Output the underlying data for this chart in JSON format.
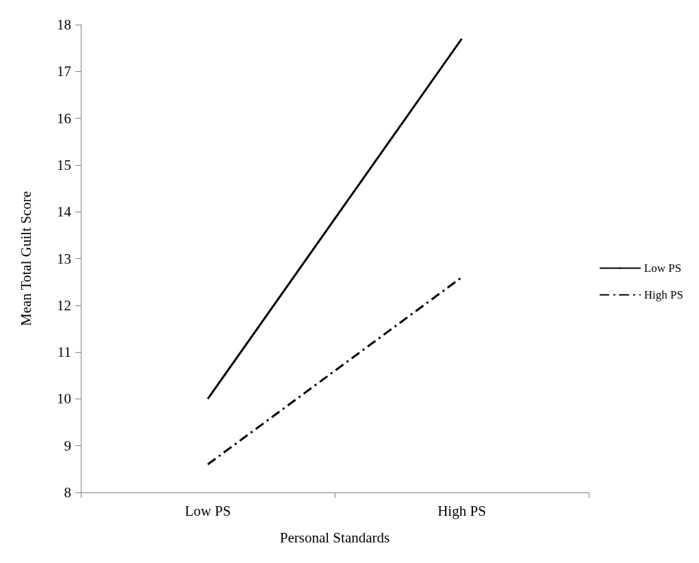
{
  "chart_data": {
    "type": "line",
    "xlabel": "Personal Standards",
    "ylabel": "Mean Total Guilt Score",
    "categories": [
      "Low PS",
      "High PS"
    ],
    "series": [
      {
        "name": "Low PS",
        "color": "#000000",
        "values": [
          10,
          17.7
        ],
        "line_style": "solid"
      },
      {
        "name": "High PS",
        "color": "#000000",
        "values": [
          8.6,
          12.6
        ],
        "line_style": "dashed"
      }
    ],
    "ylim": [
      8,
      18
    ],
    "yticks": [
      8,
      9,
      10,
      11,
      12,
      13,
      14,
      15,
      16,
      17,
      18
    ],
    "grid": false,
    "legend": "right",
    "marker": "none"
  }
}
